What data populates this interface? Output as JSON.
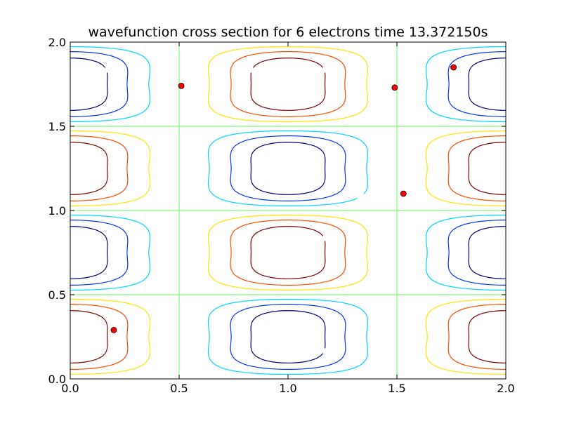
{
  "chart_data": {
    "type": "contour",
    "title": "wavefunction cross section for 6 electrons time 13.372150s",
    "xlabel": "",
    "ylabel": "",
    "xlim": [
      0.0,
      2.0
    ],
    "ylim": [
      0.0,
      2.0
    ],
    "xticks": [
      "0.0",
      "0.5",
      "1.0",
      "1.5",
      "2.0"
    ],
    "yticks": [
      "0.0",
      "0.5",
      "1.0",
      "1.5",
      "2.0"
    ],
    "grid": false,
    "contour_levels": [
      -0.6,
      -0.4,
      -0.2,
      0.0,
      0.2,
      0.4,
      0.6
    ],
    "contour_colors": [
      "#00007f",
      "#0033ff",
      "#00d5ff",
      "#7cff79",
      "#ffe500",
      "#ff4a00",
      "#7f0000"
    ],
    "marker_color": "#ff0000",
    "electron_positions": [
      {
        "x": 0.51,
        "y": 1.74
      },
      {
        "x": 1.49,
        "y": 1.73
      },
      {
        "x": 1.76,
        "y": 1.85
      },
      {
        "x": 1.53,
        "y": 1.1
      },
      {
        "x": 0.2,
        "y": 0.29
      }
    ]
  }
}
